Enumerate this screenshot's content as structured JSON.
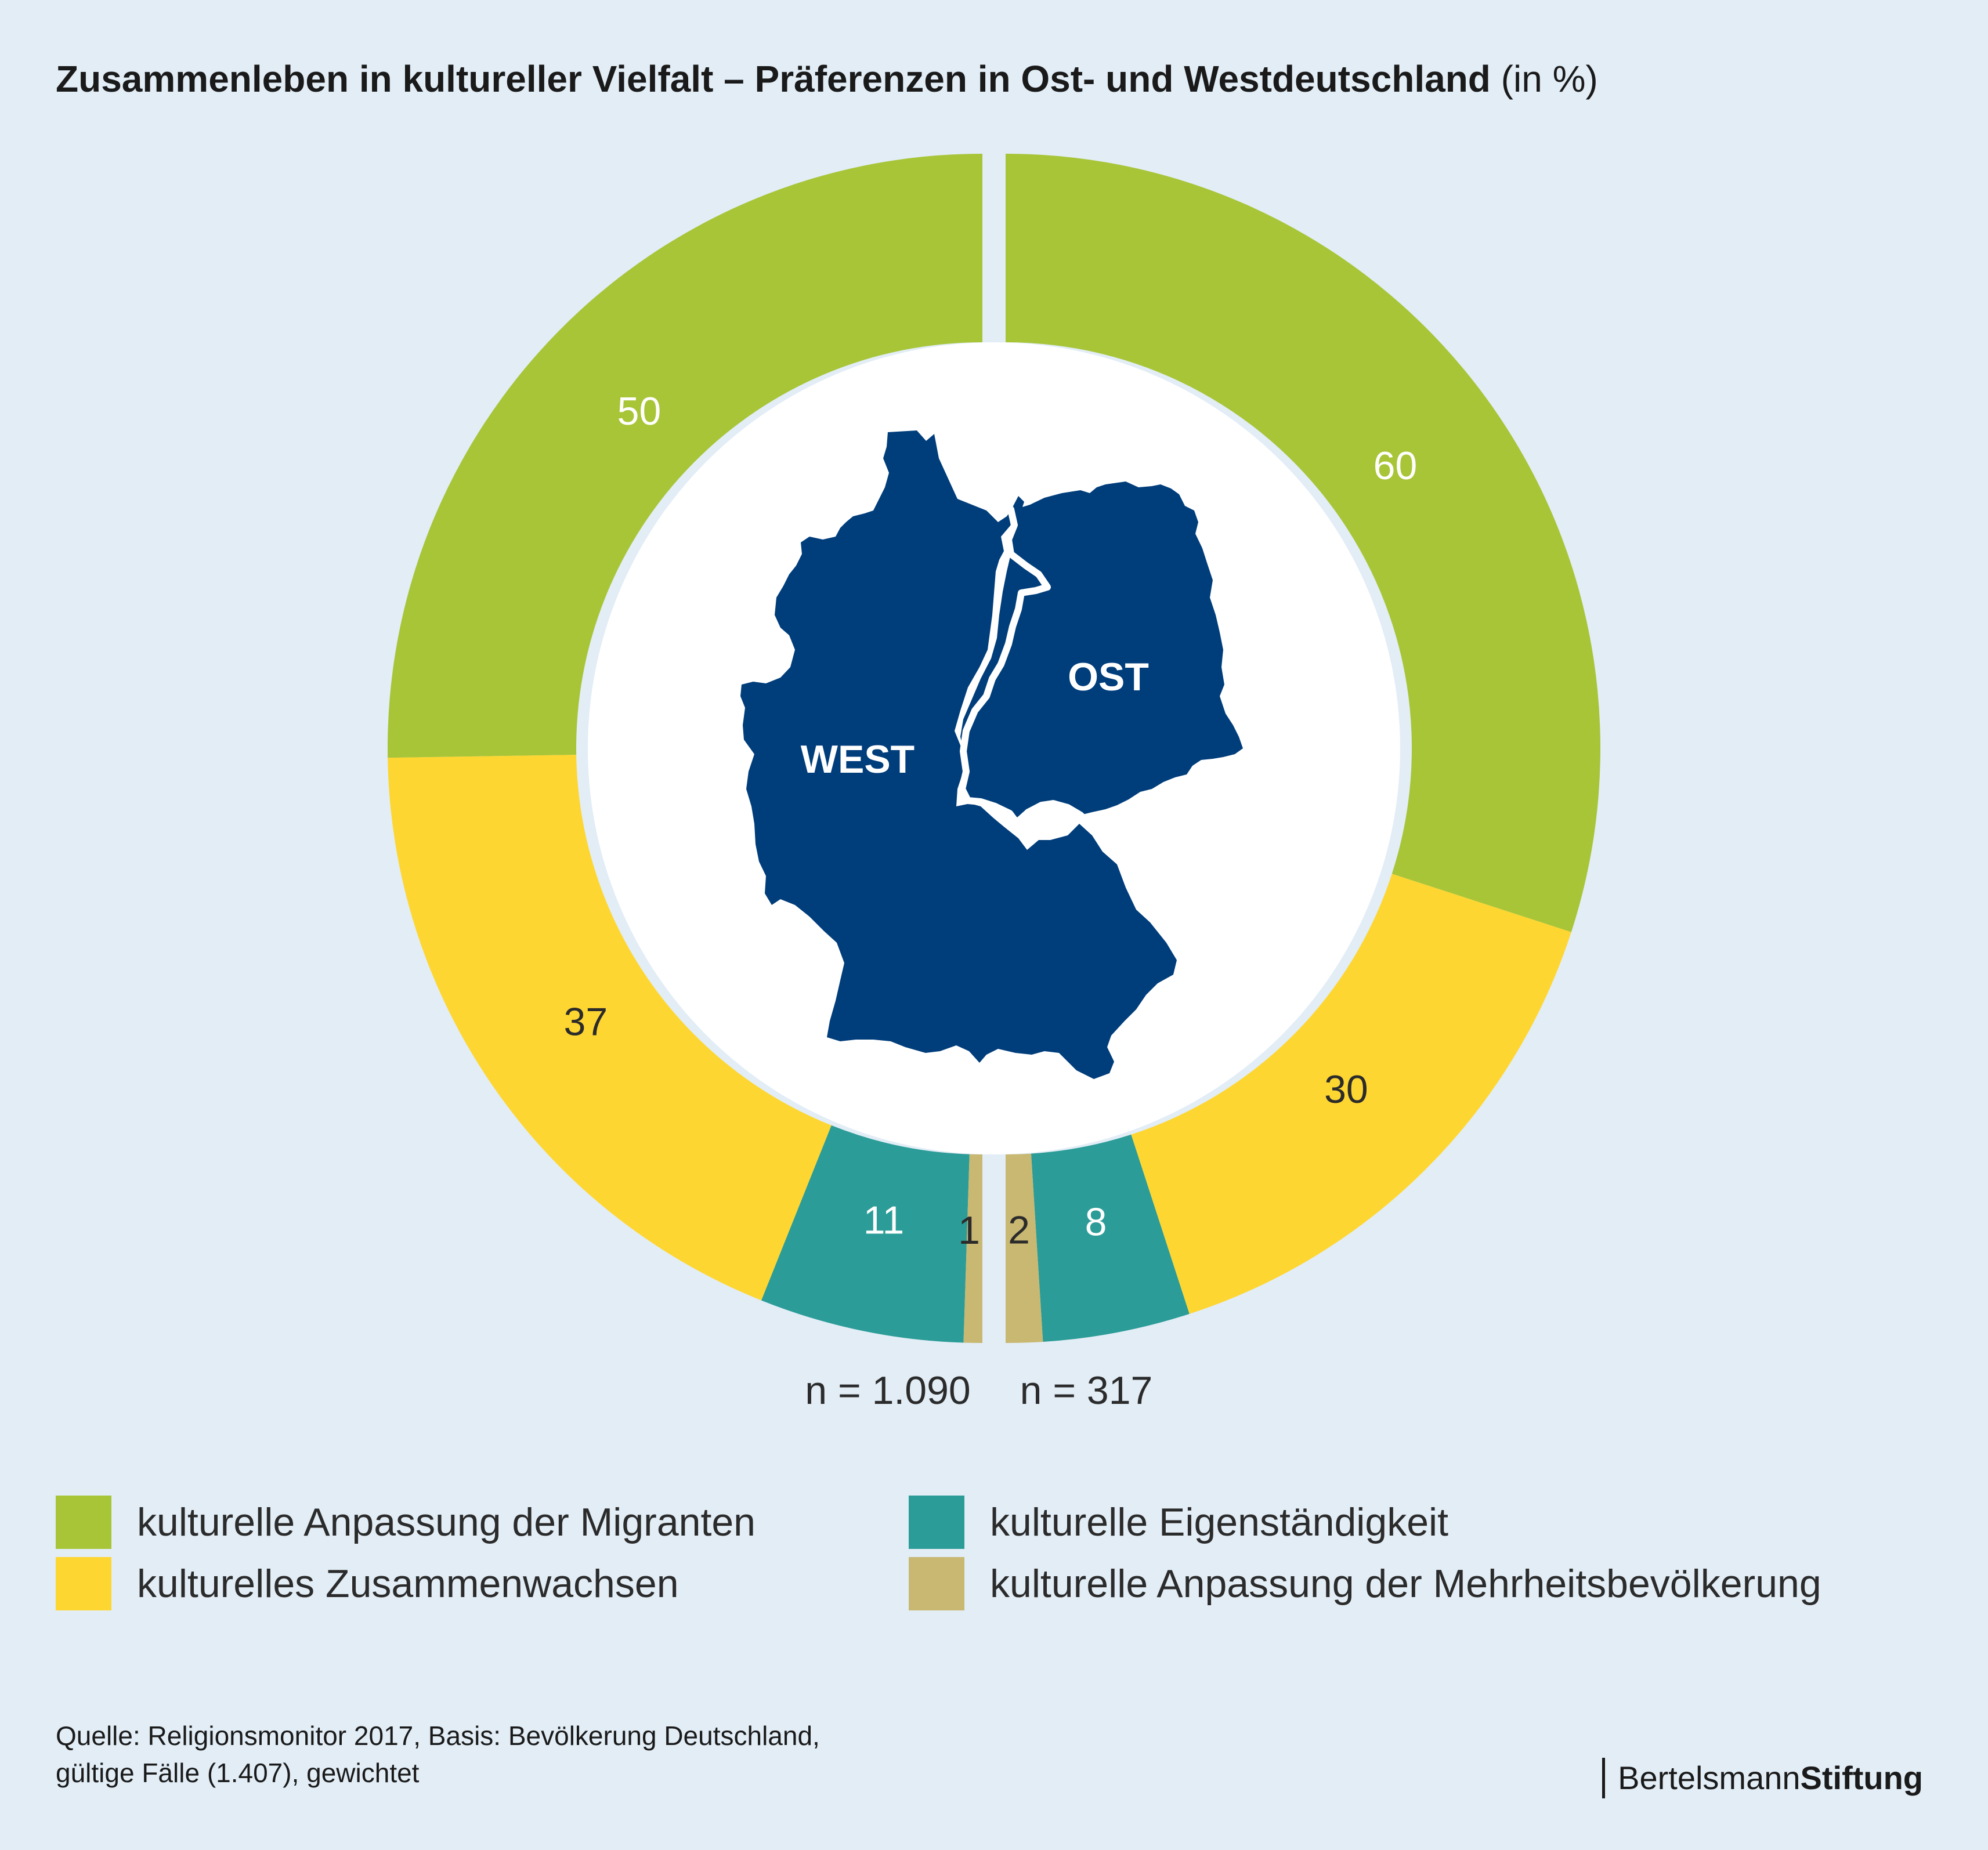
{
  "title": {
    "main": "Zusammenleben in kultureller Vielfalt – Präferenzen in Ost- und Westdeutschland",
    "unit": "(in %)"
  },
  "colors": {
    "background": "#e2edf6",
    "green": "#a8c538",
    "yellow": "#fed631",
    "teal": "#2b9c97",
    "tan": "#c9b872",
    "map": "#003d7b"
  },
  "chart_data": {
    "type": "pie",
    "variant": "split-donut",
    "categories": [
      "kulturelle Anpassung der Migranten",
      "kulturelles Zusammenwachsen",
      "kulturelle Eigenständigkeit",
      "kulturelle Anpassung der Mehrheitsbevölkerung"
    ],
    "series": [
      {
        "name": "WEST",
        "values": [
          50,
          37,
          11,
          1
        ],
        "n": "n = 1.090"
      },
      {
        "name": "OST",
        "values": [
          60,
          30,
          8,
          2
        ],
        "n": "n = 317"
      }
    ],
    "legend_position": "bottom"
  },
  "map_labels": {
    "west": "WEST",
    "ost": "OST"
  },
  "legend": [
    {
      "label": "kulturelle Anpassung der Migranten",
      "color": "#a8c538"
    },
    {
      "label": "kulturelles Zusammenwachsen",
      "color": "#fed631"
    },
    {
      "label": "kulturelle Eigenständigkeit",
      "color": "#2b9c97"
    },
    {
      "label": "kulturelle Anpassung der Mehrheitsbevölkerung",
      "color": "#c9b872"
    }
  ],
  "source": {
    "line1": "Quelle: Religionsmonitor 2017, Basis: Bevölkerung Deutschland,",
    "line2": "gültige Fälle (1.407), gewichtet"
  },
  "brand": {
    "part1": "Bertelsmann",
    "part2": "Stiftung"
  }
}
